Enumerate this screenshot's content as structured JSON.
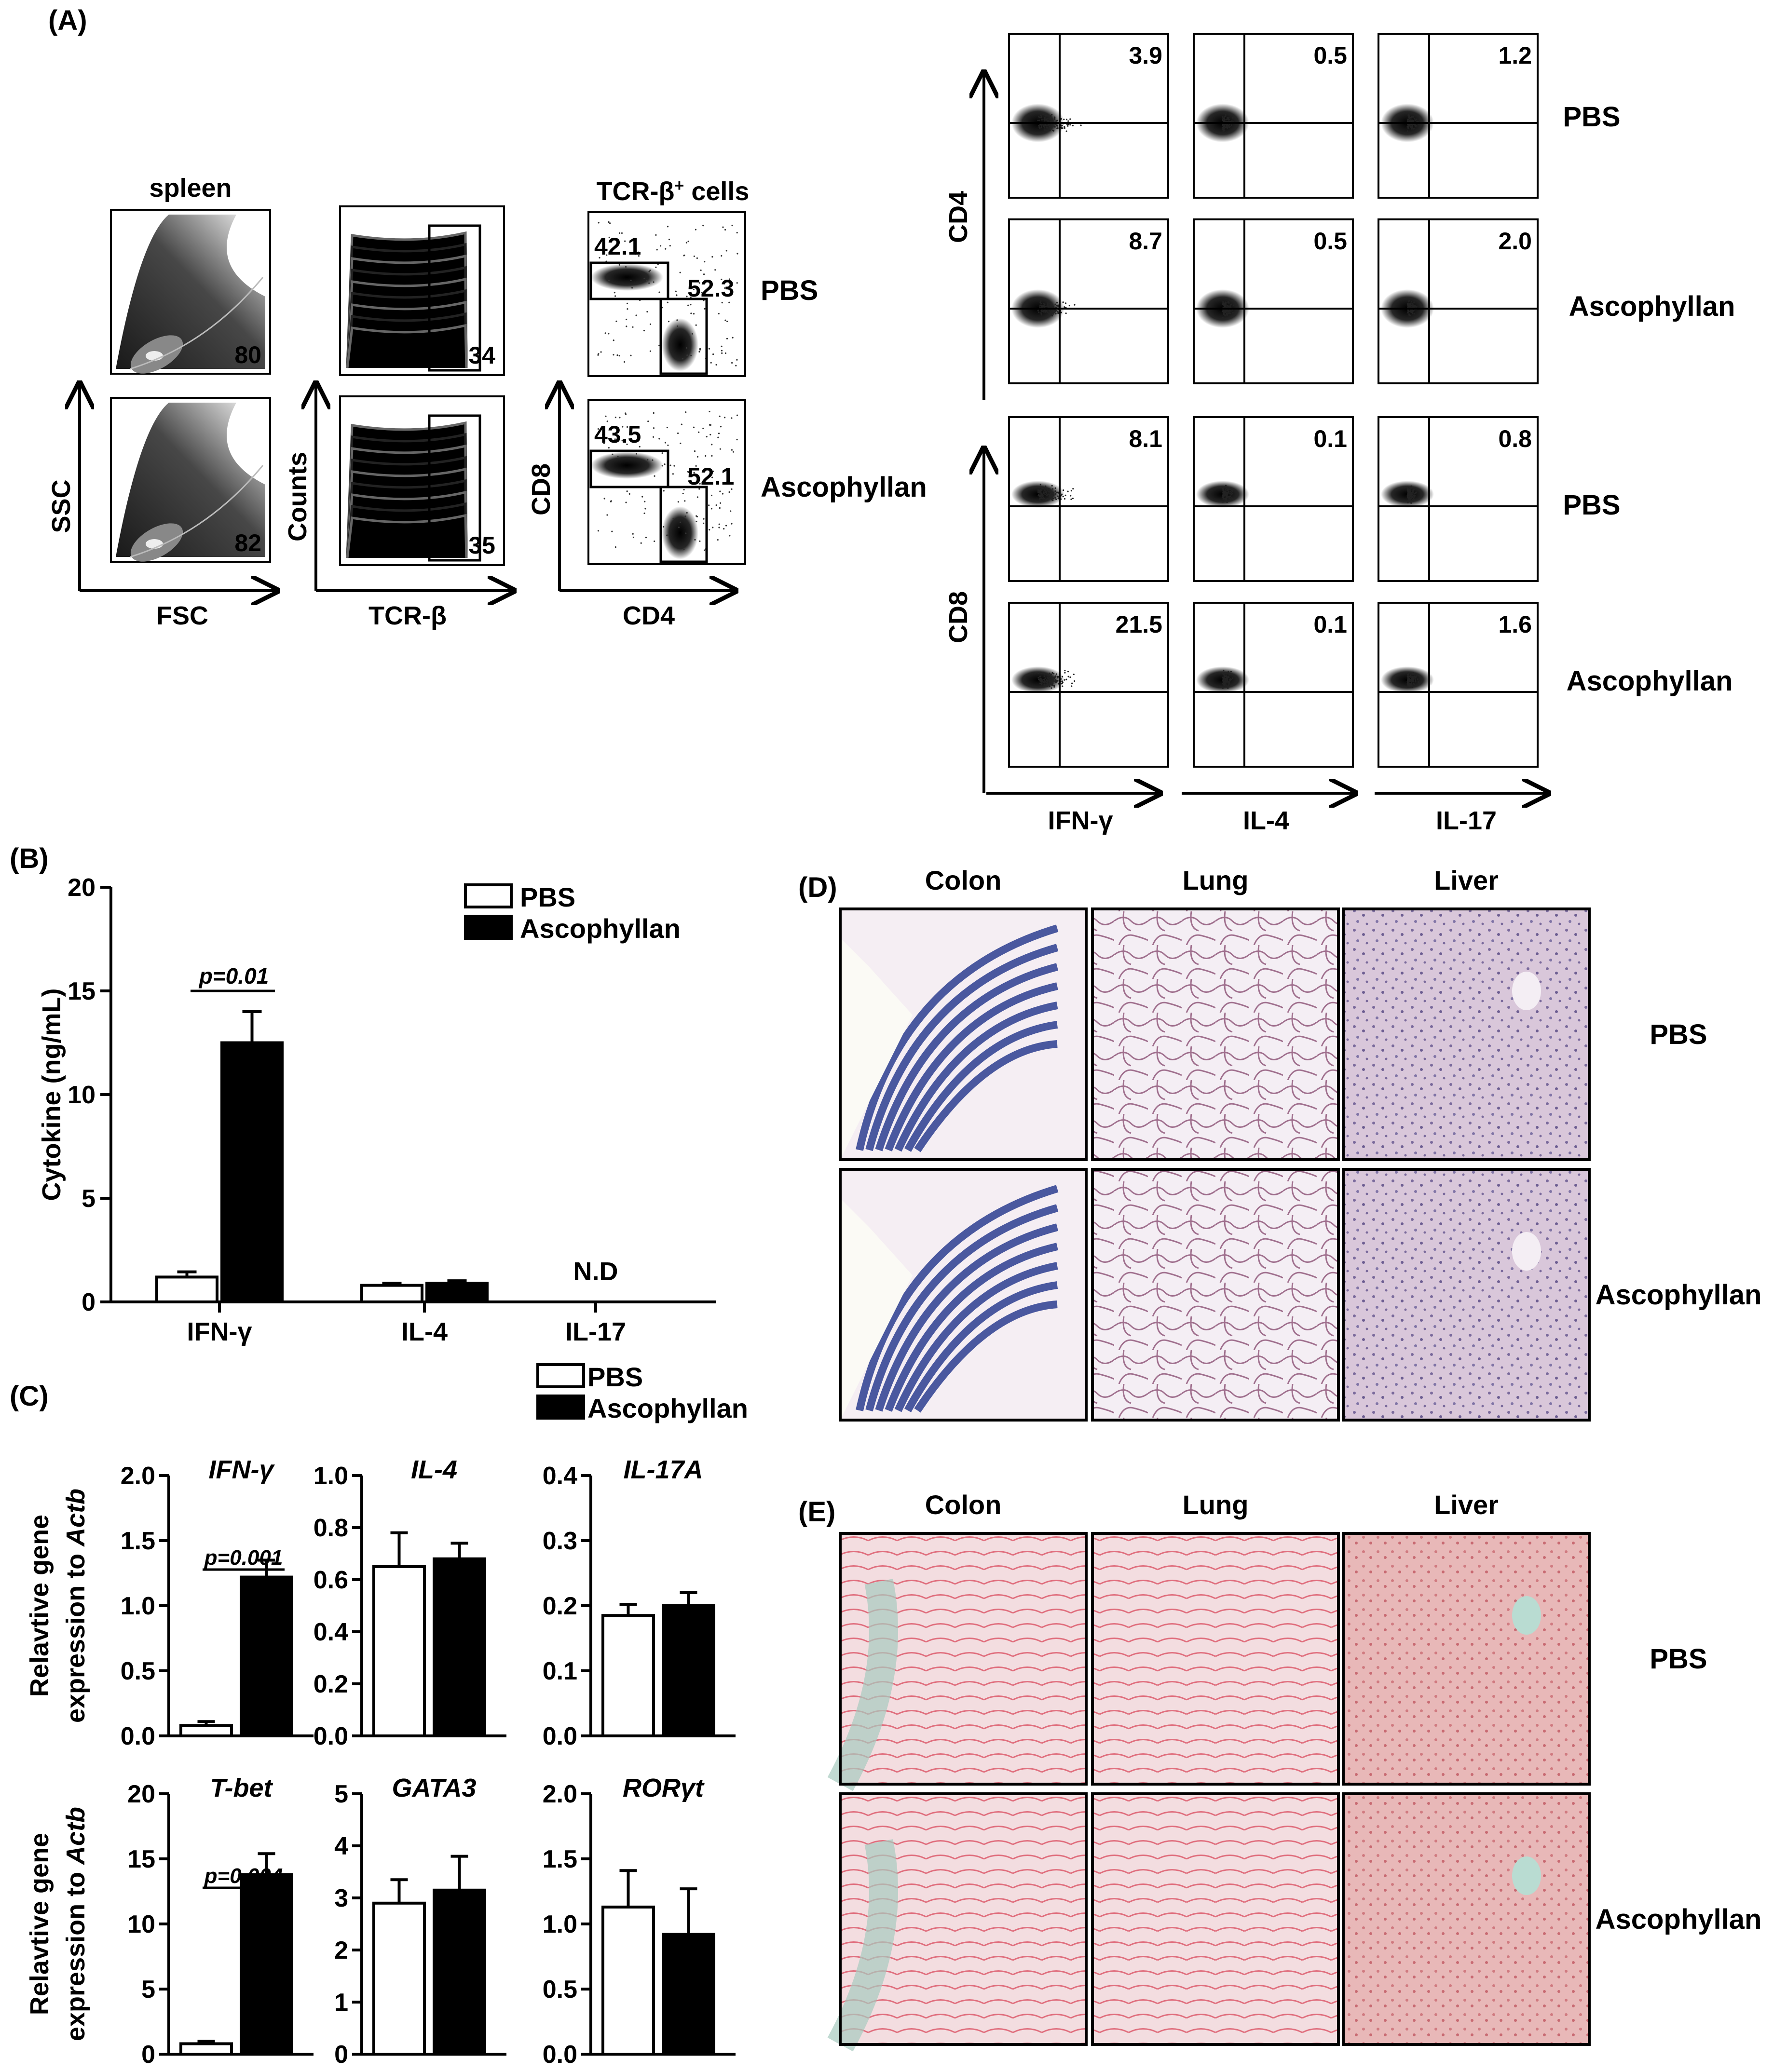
{
  "panels": {
    "A": "(A)",
    "B": "(B)",
    "C": "(C)",
    "D": "(D)",
    "E": "(E)"
  },
  "groups": [
    "PBS",
    "Ascophyllan"
  ],
  "panel_a": {
    "gating": {
      "spleen_title": "spleen",
      "tcr_title_prefix": "TCR-β",
      "tcr_title_sup": "+",
      "tcr_title_suffix": " cells",
      "fsc_ssc": {
        "xlabel": "FSC",
        "ylabel": "SSC",
        "values": [
          "80",
          "82"
        ]
      },
      "tcrb_counts": {
        "xlabel": "TCR-β",
        "ylabel": "Counts",
        "values": [
          "34",
          "35"
        ]
      },
      "cd4_cd8": {
        "xlabel": "CD4",
        "ylabel": "CD8",
        "pbs": {
          "cd8": "42.1",
          "cd4": "52.3"
        },
        "asco": {
          "cd8": "43.5",
          "cd4": "52.1"
        }
      }
    },
    "intracellular": {
      "columns": [
        "IFN-γ",
        "IL-4",
        "IL-17"
      ],
      "row_axes": [
        "CD4",
        "CD8"
      ],
      "rows": [
        {
          "group": "PBS",
          "values": [
            "3.9",
            "0.5",
            "1.2"
          ]
        },
        {
          "group": "Ascophyllan",
          "values": [
            "8.7",
            "0.5",
            "2.0"
          ]
        },
        {
          "group": "PBS",
          "values": [
            "8.1",
            "0.1",
            "0.8"
          ]
        },
        {
          "group": "Ascophyllan",
          "values": [
            "21.5",
            "0.1",
            "1.6"
          ]
        }
      ]
    }
  },
  "chart_data": [
    {
      "id": "B",
      "type": "bar",
      "categories": [
        "IFN-γ",
        "IL-4",
        "IL-17"
      ],
      "series": [
        {
          "name": "PBS",
          "values": [
            1.2,
            0.8,
            null
          ],
          "errors": [
            0.25,
            0.1,
            null
          ]
        },
        {
          "name": "Ascophyllan",
          "values": [
            12.5,
            0.9,
            null
          ],
          "errors": [
            1.5,
            0.12,
            null
          ]
        }
      ],
      "ylabel": "Cytokine (ng/mL)",
      "ylim": [
        0,
        20
      ],
      "yticks": [
        "0",
        "5",
        "10",
        "15",
        "20"
      ],
      "annotations": [
        {
          "category": "IFN-γ",
          "text": "p=0.01"
        },
        {
          "category": "IL-17",
          "text": "N.D"
        }
      ],
      "legend": "top-right"
    },
    {
      "id": "C",
      "type": "bar",
      "ylabel_line1": "Relavtive gene",
      "ylabel_line2": "expression to ",
      "ylabel_line2_italic": "Actb",
      "legend": "top",
      "subplots": [
        {
          "title": "IFN-γ",
          "ylim": [
            0,
            2.0
          ],
          "yticks": [
            "0.0",
            "0.5",
            "1.0",
            "1.5",
            "2.0"
          ],
          "values": [
            0.08,
            1.22
          ],
          "errors": [
            0.03,
            0.13
          ],
          "p": "p=0.001"
        },
        {
          "title": "IL-4",
          "ylim": [
            0,
            1.0
          ],
          "yticks": [
            "0.0",
            "0.2",
            "0.4",
            "0.6",
            "0.8",
            "1.0"
          ],
          "values": [
            0.65,
            0.68
          ],
          "errors": [
            0.13,
            0.06
          ],
          "p": ""
        },
        {
          "title": "IL-17A",
          "ylim": [
            0,
            0.4
          ],
          "yticks": [
            "0.0",
            "0.1",
            "0.2",
            "0.3",
            "0.4"
          ],
          "values": [
            0.185,
            0.2
          ],
          "errors": [
            0.017,
            0.02
          ],
          "p": ""
        },
        {
          "title": "T-bet",
          "ylim": [
            0,
            20
          ],
          "yticks": [
            "0",
            "5",
            "10",
            "15",
            "20"
          ],
          "values": [
            0.8,
            13.8
          ],
          "errors": [
            0.2,
            1.6
          ],
          "p": "p=0.004"
        },
        {
          "title": "GATA3",
          "ylim": [
            0,
            5
          ],
          "yticks": [
            "0",
            "1",
            "2",
            "3",
            "4",
            "5"
          ],
          "values": [
            2.9,
            3.15
          ],
          "errors": [
            0.45,
            0.65
          ],
          "p": ""
        },
        {
          "title": "RORγt",
          "ylim": [
            0,
            2.0
          ],
          "yticks": [
            "0.0",
            "0.5",
            "1.0",
            "1.5",
            "2.0"
          ],
          "values": [
            1.13,
            0.92
          ],
          "errors": [
            0.28,
            0.35
          ],
          "p": ""
        }
      ]
    }
  ],
  "panel_d": {
    "columns": [
      "Colon",
      "Lung",
      "Liver"
    ],
    "rows": [
      "PBS",
      "Ascophyllan"
    ]
  },
  "panel_e": {
    "columns": [
      "Colon",
      "Lung",
      "Liver"
    ],
    "rows": [
      "PBS",
      "Ascophyllan"
    ]
  },
  "colors": {
    "pbs": "#ffffff",
    "ascophyllan": "#000000",
    "he_stain": "#d6c4d8",
    "colon_blue": "#2c3d8f",
    "sirius_red": "#e06f7e"
  }
}
